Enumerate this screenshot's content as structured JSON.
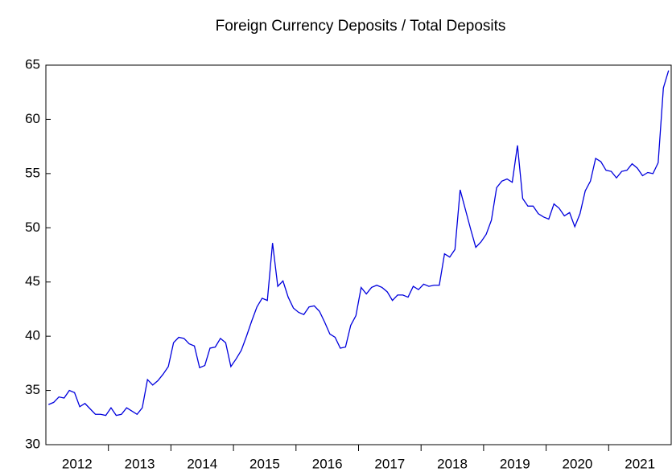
{
  "chart_data": {
    "type": "line",
    "title": "Foreign Currency Deposits / Total Deposits",
    "categories": [
      "2012",
      "2013",
      "2014",
      "2015",
      "2016",
      "2017",
      "2018",
      "2019",
      "2020",
      "2021"
    ],
    "color": "#0000dd",
    "values": [
      [
        33.7,
        33.9,
        34.4,
        34.3,
        35.0,
        34.8,
        33.5,
        33.8,
        33.3,
        32.8,
        32.8,
        32.7
      ],
      [
        33.4,
        32.7,
        32.8,
        33.4,
        33.1,
        32.8,
        33.4,
        36.0,
        35.5,
        35.9,
        36.5,
        37.2
      ],
      [
        39.4,
        39.9,
        39.8,
        39.3,
        39.1,
        37.1,
        37.3,
        38.9,
        39.0,
        39.8,
        39.4,
        37.2
      ],
      [
        37.9,
        38.7,
        40.0,
        41.4,
        42.7,
        43.5,
        43.3,
        48.6,
        44.6,
        45.1,
        43.6,
        42.6
      ],
      [
        42.2,
        42.0,
        42.7,
        42.8,
        42.3,
        41.3,
        40.2,
        39.9,
        38.9,
        39.0,
        41.0,
        41.9
      ],
      [
        44.5,
        43.9,
        44.5,
        44.7,
        44.5,
        44.1,
        43.3,
        43.8,
        43.8,
        43.6,
        44.6,
        44.3
      ],
      [
        44.8,
        44.6,
        44.7,
        44.7,
        47.6,
        47.3,
        48.0,
        53.5,
        51.7,
        49.9,
        48.2,
        48.7
      ],
      [
        49.4,
        50.7,
        53.7,
        54.3,
        54.5,
        54.2,
        57.6,
        52.7,
        52.0,
        52.0,
        51.3,
        51.0
      ],
      [
        50.8,
        52.2,
        51.8,
        51.1,
        51.4,
        50.1,
        51.3,
        53.4,
        54.3,
        56.4,
        56.1,
        55.3
      ],
      [
        55.2,
        54.6,
        55.2,
        55.3,
        55.9,
        55.5,
        54.8,
        55.1,
        55.0,
        56.0,
        62.9,
        64.5
      ]
    ],
    "ylim": [
      30,
      65
    ],
    "yticks": [
      30,
      35,
      40,
      45,
      50,
      55,
      60,
      65
    ]
  }
}
